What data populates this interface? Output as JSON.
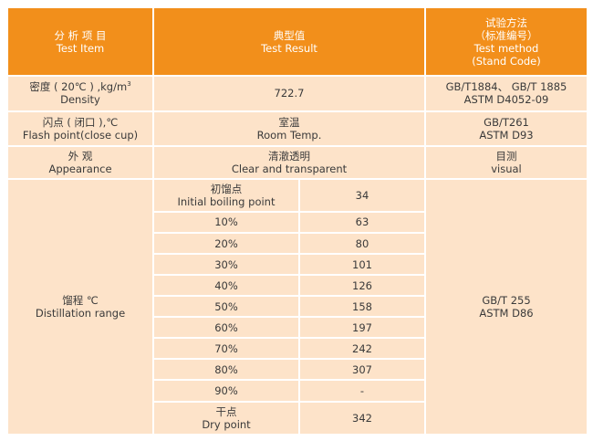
{
  "header": {
    "item": {
      "cn": "分 析 项 目",
      "en": "Test Item"
    },
    "result": {
      "cn": "典型值",
      "en": "Test Result"
    },
    "method": {
      "cn": "试验方法",
      "cn2": "（标准编号）",
      "en": "Test method",
      "en2": "(Stand Code)"
    }
  },
  "density": {
    "cn": "密度 ( 20℃ ) ,kg/m",
    "sup": "3",
    "en": "Density",
    "value": "722.7",
    "method1": "GB/T1884、 GB/T 1885",
    "method2": "ASTM D4052-09"
  },
  "flash": {
    "cn": "闪点 ( 闭口 ),℃",
    "en": "Flash point(close cup)",
    "value_cn": "室温",
    "value_en": "Room Temp.",
    "method1": "GB/T261",
    "method2": "ASTM D93"
  },
  "appearance": {
    "cn": "外  观",
    "en": "Appearance",
    "value_cn": "清澈透明",
    "value_en": "Clear and transparent",
    "method_cn": "目测",
    "method_en": "visual"
  },
  "distillation": {
    "cn": "馏程  ℃",
    "en": "Distillation range",
    "method1": "GB/T 255",
    "method2": "ASTM D86",
    "ibp": {
      "cn": "初馏点",
      "en": "Initial boiling point",
      "value": "34"
    },
    "rows": [
      {
        "label": "10%",
        "value": "63"
      },
      {
        "label": "20%",
        "value": "80"
      },
      {
        "label": "30%",
        "value": "101"
      },
      {
        "label": "40%",
        "value": "126"
      },
      {
        "label": "50%",
        "value": "158"
      },
      {
        "label": "60%",
        "value": "197"
      },
      {
        "label": "70%",
        "value": "242"
      },
      {
        "label": "80%",
        "value": "307"
      },
      {
        "label": "90%",
        "value": "-"
      }
    ],
    "dp": {
      "cn": "干点",
      "en": "Dry point",
      "value": "342"
    }
  }
}
